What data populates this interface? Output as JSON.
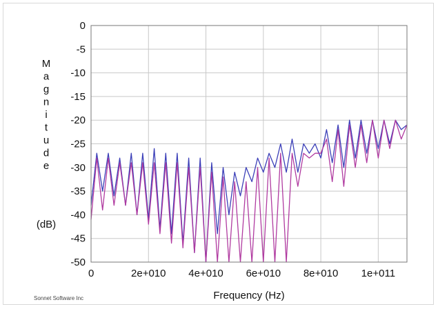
{
  "credit": "Sonnet Software Inc",
  "chart_data": {
    "type": "line",
    "title": "",
    "xlabel": "Frequency (Hz)",
    "ylabel_letters": [
      "M",
      "a",
      "g",
      "n",
      "i",
      "t",
      "u",
      "d",
      "e"
    ],
    "ylabel_unit": "(dB)",
    "xlim": [
      0,
      110000000000.0
    ],
    "ylim": [
      -50,
      0
    ],
    "grid": true,
    "x_ticks": [
      0,
      20000000000.0,
      40000000000.0,
      60000000000.0,
      80000000000.0,
      100000000000.0
    ],
    "x_tick_labels": [
      "0",
      "2e+010",
      "4e+010",
      "6e+010",
      "8e+010",
      "1e+011"
    ],
    "y_ticks": [
      0,
      -5,
      -10,
      -15,
      -20,
      -25,
      -30,
      -35,
      -40,
      -45,
      -50
    ],
    "y_tick_labels": [
      "0",
      "-5",
      "-10",
      "-15",
      "-20",
      "-25",
      "-30",
      "-35",
      "-40",
      "-45",
      "-50"
    ],
    "series": [
      {
        "color": "#3b3fb8",
        "x": [
          0,
          2000000000.0,
          4000000000.0,
          6000000000.0,
          8000000000.0,
          10000000000.0,
          12000000000.0,
          14000000000.0,
          16000000000.0,
          18000000000.0,
          20000000000.0,
          22000000000.0,
          24000000000.0,
          26000000000.0,
          28000000000.0,
          30000000000.0,
          32000000000.0,
          34000000000.0,
          36000000000.0,
          38000000000.0,
          40000000000.0,
          42000000000.0,
          44000000000.0,
          46000000000.0,
          48000000000.0,
          50000000000.0,
          52000000000.0,
          54000000000.0,
          56000000000.0,
          58000000000.0,
          60000000000.0,
          62000000000.0,
          64000000000.0,
          66000000000.0,
          68000000000.0,
          70000000000.0,
          72000000000.0,
          74000000000.0,
          76000000000.0,
          78000000000.0,
          80000000000.0,
          82000000000.0,
          84000000000.0,
          86000000000.0,
          88000000000.0,
          90000000000.0,
          92000000000.0,
          94000000000.0,
          96000000000.0,
          98000000000.0,
          100000000000.0,
          102000000000.0,
          104000000000.0,
          106000000000.0,
          108000000000.0,
          110000000000.0
        ],
        "y": [
          -38,
          -27,
          -35,
          -27,
          -36,
          -28,
          -38,
          -27,
          -40,
          -27,
          -41,
          -26,
          -43,
          -27,
          -44,
          -27,
          -46,
          -28,
          -48,
          -28,
          -50,
          -29,
          -44,
          -30,
          -40,
          -31,
          -36,
          -30,
          -33,
          -28,
          -31,
          -27,
          -30,
          -25,
          -31,
          -24,
          -31,
          -25,
          -27,
          -25,
          -28,
          -22,
          -29,
          -21,
          -30,
          -20,
          -28,
          -20,
          -27,
          -20,
          -26,
          -20,
          -25,
          -20,
          -22,
          -21
        ]
      },
      {
        "color": "#b03aa0",
        "x": [
          0,
          2000000000.0,
          4000000000.0,
          6000000000.0,
          8000000000.0,
          10000000000.0,
          12000000000.0,
          14000000000.0,
          16000000000.0,
          18000000000.0,
          20000000000.0,
          22000000000.0,
          24000000000.0,
          26000000000.0,
          28000000000.0,
          30000000000.0,
          32000000000.0,
          34000000000.0,
          36000000000.0,
          38000000000.0,
          40000000000.0,
          42000000000.0,
          44000000000.0,
          46000000000.0,
          48000000000.0,
          50000000000.0,
          52000000000.0,
          54000000000.0,
          56000000000.0,
          58000000000.0,
          60000000000.0,
          62000000000.0,
          64000000000.0,
          66000000000.0,
          68000000000.0,
          70000000000.0,
          72000000000.0,
          74000000000.0,
          76000000000.0,
          78000000000.0,
          80000000000.0,
          82000000000.0,
          84000000000.0,
          86000000000.0,
          88000000000.0,
          90000000000.0,
          92000000000.0,
          94000000000.0,
          96000000000.0,
          98000000000.0,
          100000000000.0,
          102000000000.0,
          104000000000.0,
          106000000000.0,
          108000000000.0,
          110000000000.0
        ],
        "y": [
          -41,
          -28,
          -39,
          -28,
          -38,
          -29,
          -38,
          -29,
          -40,
          -29,
          -42,
          -29,
          -44,
          -29,
          -46,
          -29,
          -47,
          -30,
          -48,
          -30,
          -50,
          -31,
          -50,
          -32,
          -50,
          -33,
          -50,
          -33,
          -50,
          -30,
          -50,
          -28,
          -50,
          -27,
          -50,
          -27,
          -34,
          -27,
          -28,
          -27,
          -27,
          -24,
          -33,
          -22,
          -34,
          -21,
          -30,
          -21,
          -29,
          -20,
          -28,
          -20,
          -26,
          -20,
          -24,
          -21
        ]
      }
    ]
  }
}
